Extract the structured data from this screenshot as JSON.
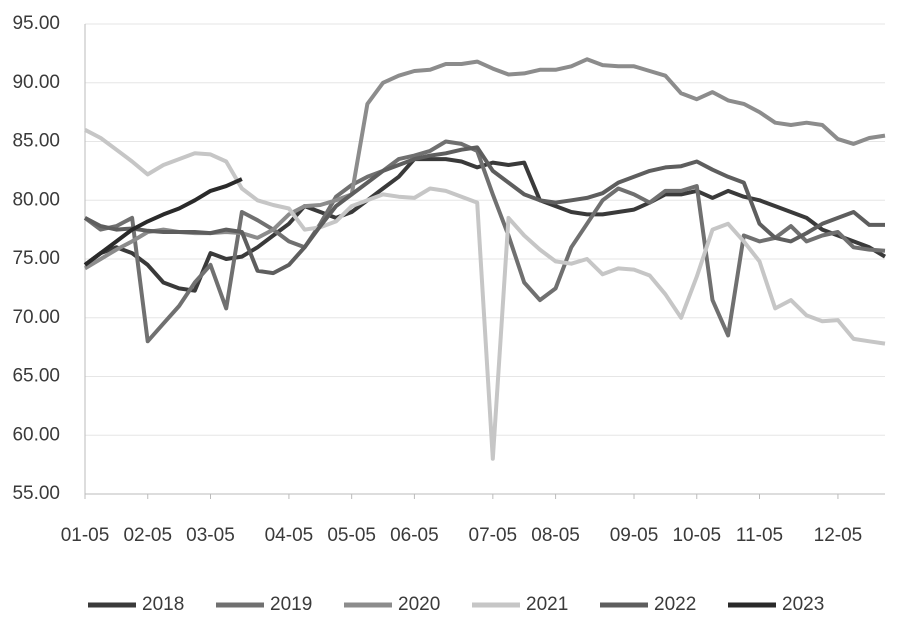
{
  "chart_data": {
    "type": "line",
    "categories": [
      "01-05",
      null,
      null,
      null,
      "02-05",
      null,
      null,
      null,
      "03-05",
      null,
      null,
      null,
      null,
      "04-05",
      null,
      null,
      null,
      "05-05",
      null,
      null,
      null,
      "06-05",
      null,
      null,
      null,
      null,
      "07-05",
      null,
      null,
      null,
      "08-05",
      null,
      null,
      null,
      null,
      "09-05",
      null,
      null,
      null,
      "10-05",
      null,
      null,
      null,
      "11-05",
      null,
      null,
      null,
      null,
      "12-05",
      null,
      null,
      null
    ],
    "ylim": [
      55,
      95
    ],
    "yticks": [
      {
        "value": 55,
        "label": "55.00"
      },
      {
        "value": 60,
        "label": "60.00"
      },
      {
        "value": 65,
        "label": "65.00"
      },
      {
        "value": 70,
        "label": "70.00"
      },
      {
        "value": 75,
        "label": "75.00"
      },
      {
        "value": 80,
        "label": "80.00"
      },
      {
        "value": 85,
        "label": "85.00"
      },
      {
        "value": 90,
        "label": "90.00"
      },
      {
        "value": 95,
        "label": "95.00"
      }
    ],
    "grid": true,
    "legend": "bottom",
    "series": [
      {
        "name": "2018",
        "color": "#3a3a3a",
        "values": [
          74.5,
          75.5,
          76,
          75.5,
          74.5,
          73,
          72.5,
          72.3,
          75.5,
          75,
          75.2,
          76,
          77,
          78,
          79.5,
          79,
          78.5,
          79,
          80,
          81,
          82,
          83.5,
          83.5,
          83.5,
          83.3,
          82.8,
          83.2,
          83,
          83.2,
          80,
          79.5,
          79,
          78.8,
          78.8,
          79,
          79.2,
          79.8,
          80.5,
          80.5,
          80.8,
          80.2,
          80.8,
          80.3,
          80,
          79.5,
          79,
          78.5,
          77.5,
          77,
          76.5,
          76,
          75.2
        ]
      },
      {
        "name": "2019",
        "color": "#707070",
        "values": [
          78.5,
          77.5,
          77.8,
          78.5,
          68,
          69.5,
          71,
          73,
          74.5,
          70.8,
          79,
          78.3,
          77.5,
          76.5,
          76,
          78,
          80.3,
          81.3,
          82,
          82.5,
          83.5,
          83.8,
          84.2,
          85,
          84.8,
          84.2,
          80.5,
          77,
          73,
          71.5,
          72.5,
          76,
          78,
          80,
          81,
          80.5,
          79.8,
          80.8,
          80.8,
          81.2,
          71.5,
          68.5,
          77,
          76.5,
          76.8,
          77.8,
          76.5,
          77,
          77.3,
          76,
          75.8,
          75.7
        ]
      },
      {
        "name": "2020",
        "color": "#8c8c8c",
        "values": [
          74.2,
          75,
          75.8,
          76.5,
          77.3,
          77.5,
          77.3,
          77.2,
          77.2,
          77.3,
          77.2,
          76.8,
          77.5,
          78.8,
          79.5,
          79.6,
          80,
          80.5,
          88.2,
          90,
          90.6,
          91,
          91.1,
          91.6,
          91.6,
          91.8,
          91.2,
          90.7,
          90.8,
          91.1,
          91.1,
          91.4,
          92,
          91.5,
          91.4,
          91.4,
          91,
          90.6,
          89.1,
          88.6,
          89.2,
          88.5,
          88.2,
          87.5,
          86.6,
          86.4,
          86.6,
          86.4,
          85.2,
          84.8,
          85.3,
          85.5
        ]
      },
      {
        "name": "2021",
        "color": "#c6c6c6",
        "values": [
          86,
          85.3,
          84.3,
          83.3,
          82.2,
          83,
          83.5,
          84,
          83.9,
          83.3,
          81,
          80,
          79.6,
          79.3,
          77.5,
          77.7,
          78.2,
          79.5,
          80,
          80.5,
          80.3,
          80.2,
          81,
          80.8,
          80.3,
          79.8,
          58,
          78.5,
          77,
          75.8,
          74.8,
          74.6,
          75,
          73.7,
          74.2,
          74.1,
          73.6,
          72,
          70,
          73.5,
          77.5,
          78,
          76.5,
          74.8,
          70.8,
          71.5,
          70.2,
          69.7,
          69.8,
          68.2,
          68,
          67.8
        ]
      },
      {
        "name": "2022",
        "color": "#5e5e5e",
        "values": [
          78.5,
          77.8,
          77.5,
          77.6,
          77.4,
          77.3,
          77.3,
          77.3,
          77.2,
          77.5,
          77.3,
          74,
          73.8,
          74.5,
          76,
          77.8,
          79.5,
          80.5,
          81.5,
          82.5,
          83,
          83.5,
          83.8,
          84,
          84.3,
          84.5,
          82.5,
          81.5,
          80.5,
          80,
          79.8,
          80,
          80.2,
          80.6,
          81.5,
          82,
          82.5,
          82.8,
          82.9,
          83.3,
          82.6,
          82,
          81.5,
          78,
          76.8,
          76.5,
          77.2,
          78,
          78.5,
          79,
          77.9,
          77.9
        ]
      },
      {
        "name": "2023",
        "color": "#2a2a2a",
        "values": [
          74.5,
          75.5,
          76.5,
          77.5,
          78.2,
          78.8,
          79.3,
          80,
          80.8,
          81.2,
          81.8,
          null,
          null,
          null,
          null,
          null,
          null,
          null,
          null,
          null,
          null,
          null,
          null,
          null,
          null,
          null,
          null,
          null,
          null,
          null,
          null,
          null,
          null,
          null,
          null,
          null,
          null,
          null,
          null,
          null,
          null,
          null,
          null,
          null,
          null,
          null,
          null,
          null,
          null,
          null,
          null,
          null
        ]
      }
    ]
  }
}
